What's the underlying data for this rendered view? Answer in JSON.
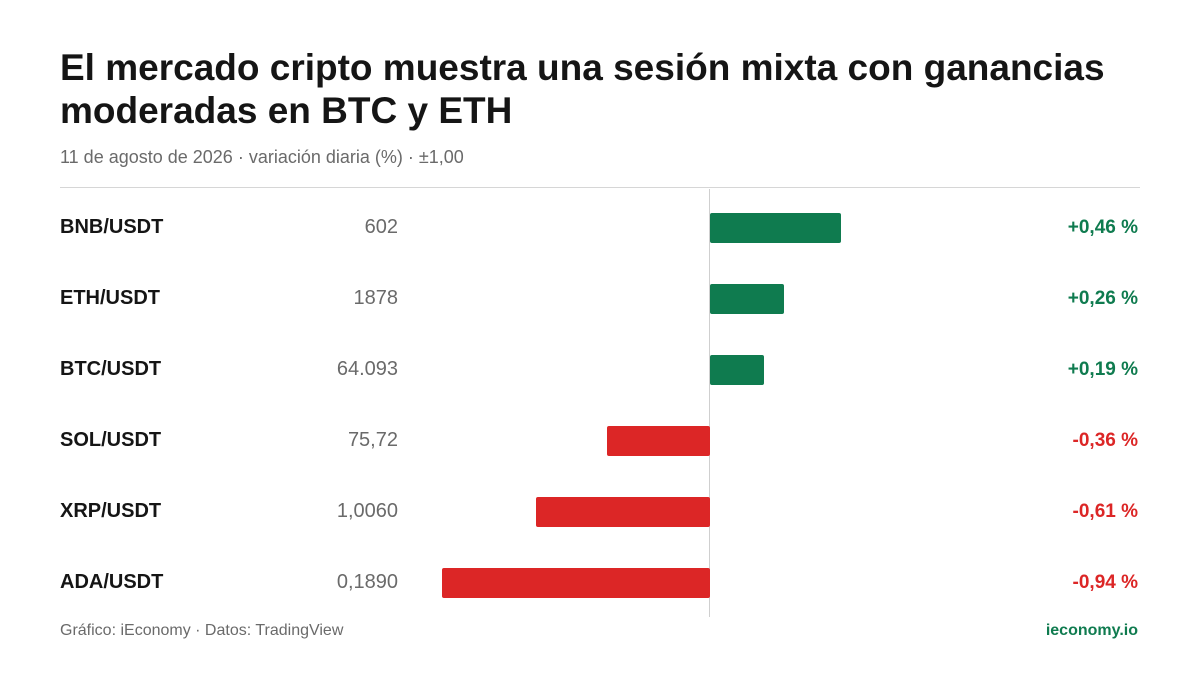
{
  "colors": {
    "positive": "#0f7b4f",
    "negative": "#dc2626",
    "brand": "#0f7b4f"
  },
  "chart_data": {
    "type": "bar",
    "orientation": "horizontal",
    "title": "El mercado cripto muestra una sesión mixta con ganancias moderadas en BTC y ETH",
    "subtitle": "11 de agosto de 2026 · variación diaria (%) · ±1,00",
    "xlim": [
      -1.0,
      1.0
    ],
    "categories": [
      "BNB/USDT",
      "ETH/USDT",
      "BTC/USDT",
      "SOL/USDT",
      "XRP/USDT",
      "ADA/USDT"
    ],
    "prices": [
      "602",
      "1878",
      "64.093",
      "75,72",
      "1,0060",
      "0,1890"
    ],
    "values": [
      0.46,
      0.26,
      0.19,
      -0.36,
      -0.61,
      -0.94
    ],
    "value_labels": [
      "+0,46 %",
      "+0,26 %",
      "+0,19 %",
      "-0,36 %",
      "-0,61 %",
      "-0,94 %"
    ]
  },
  "footer": {
    "credit": "Gráfico: iEconomy · Datos: TradingView",
    "site": "ieconomy.io"
  }
}
